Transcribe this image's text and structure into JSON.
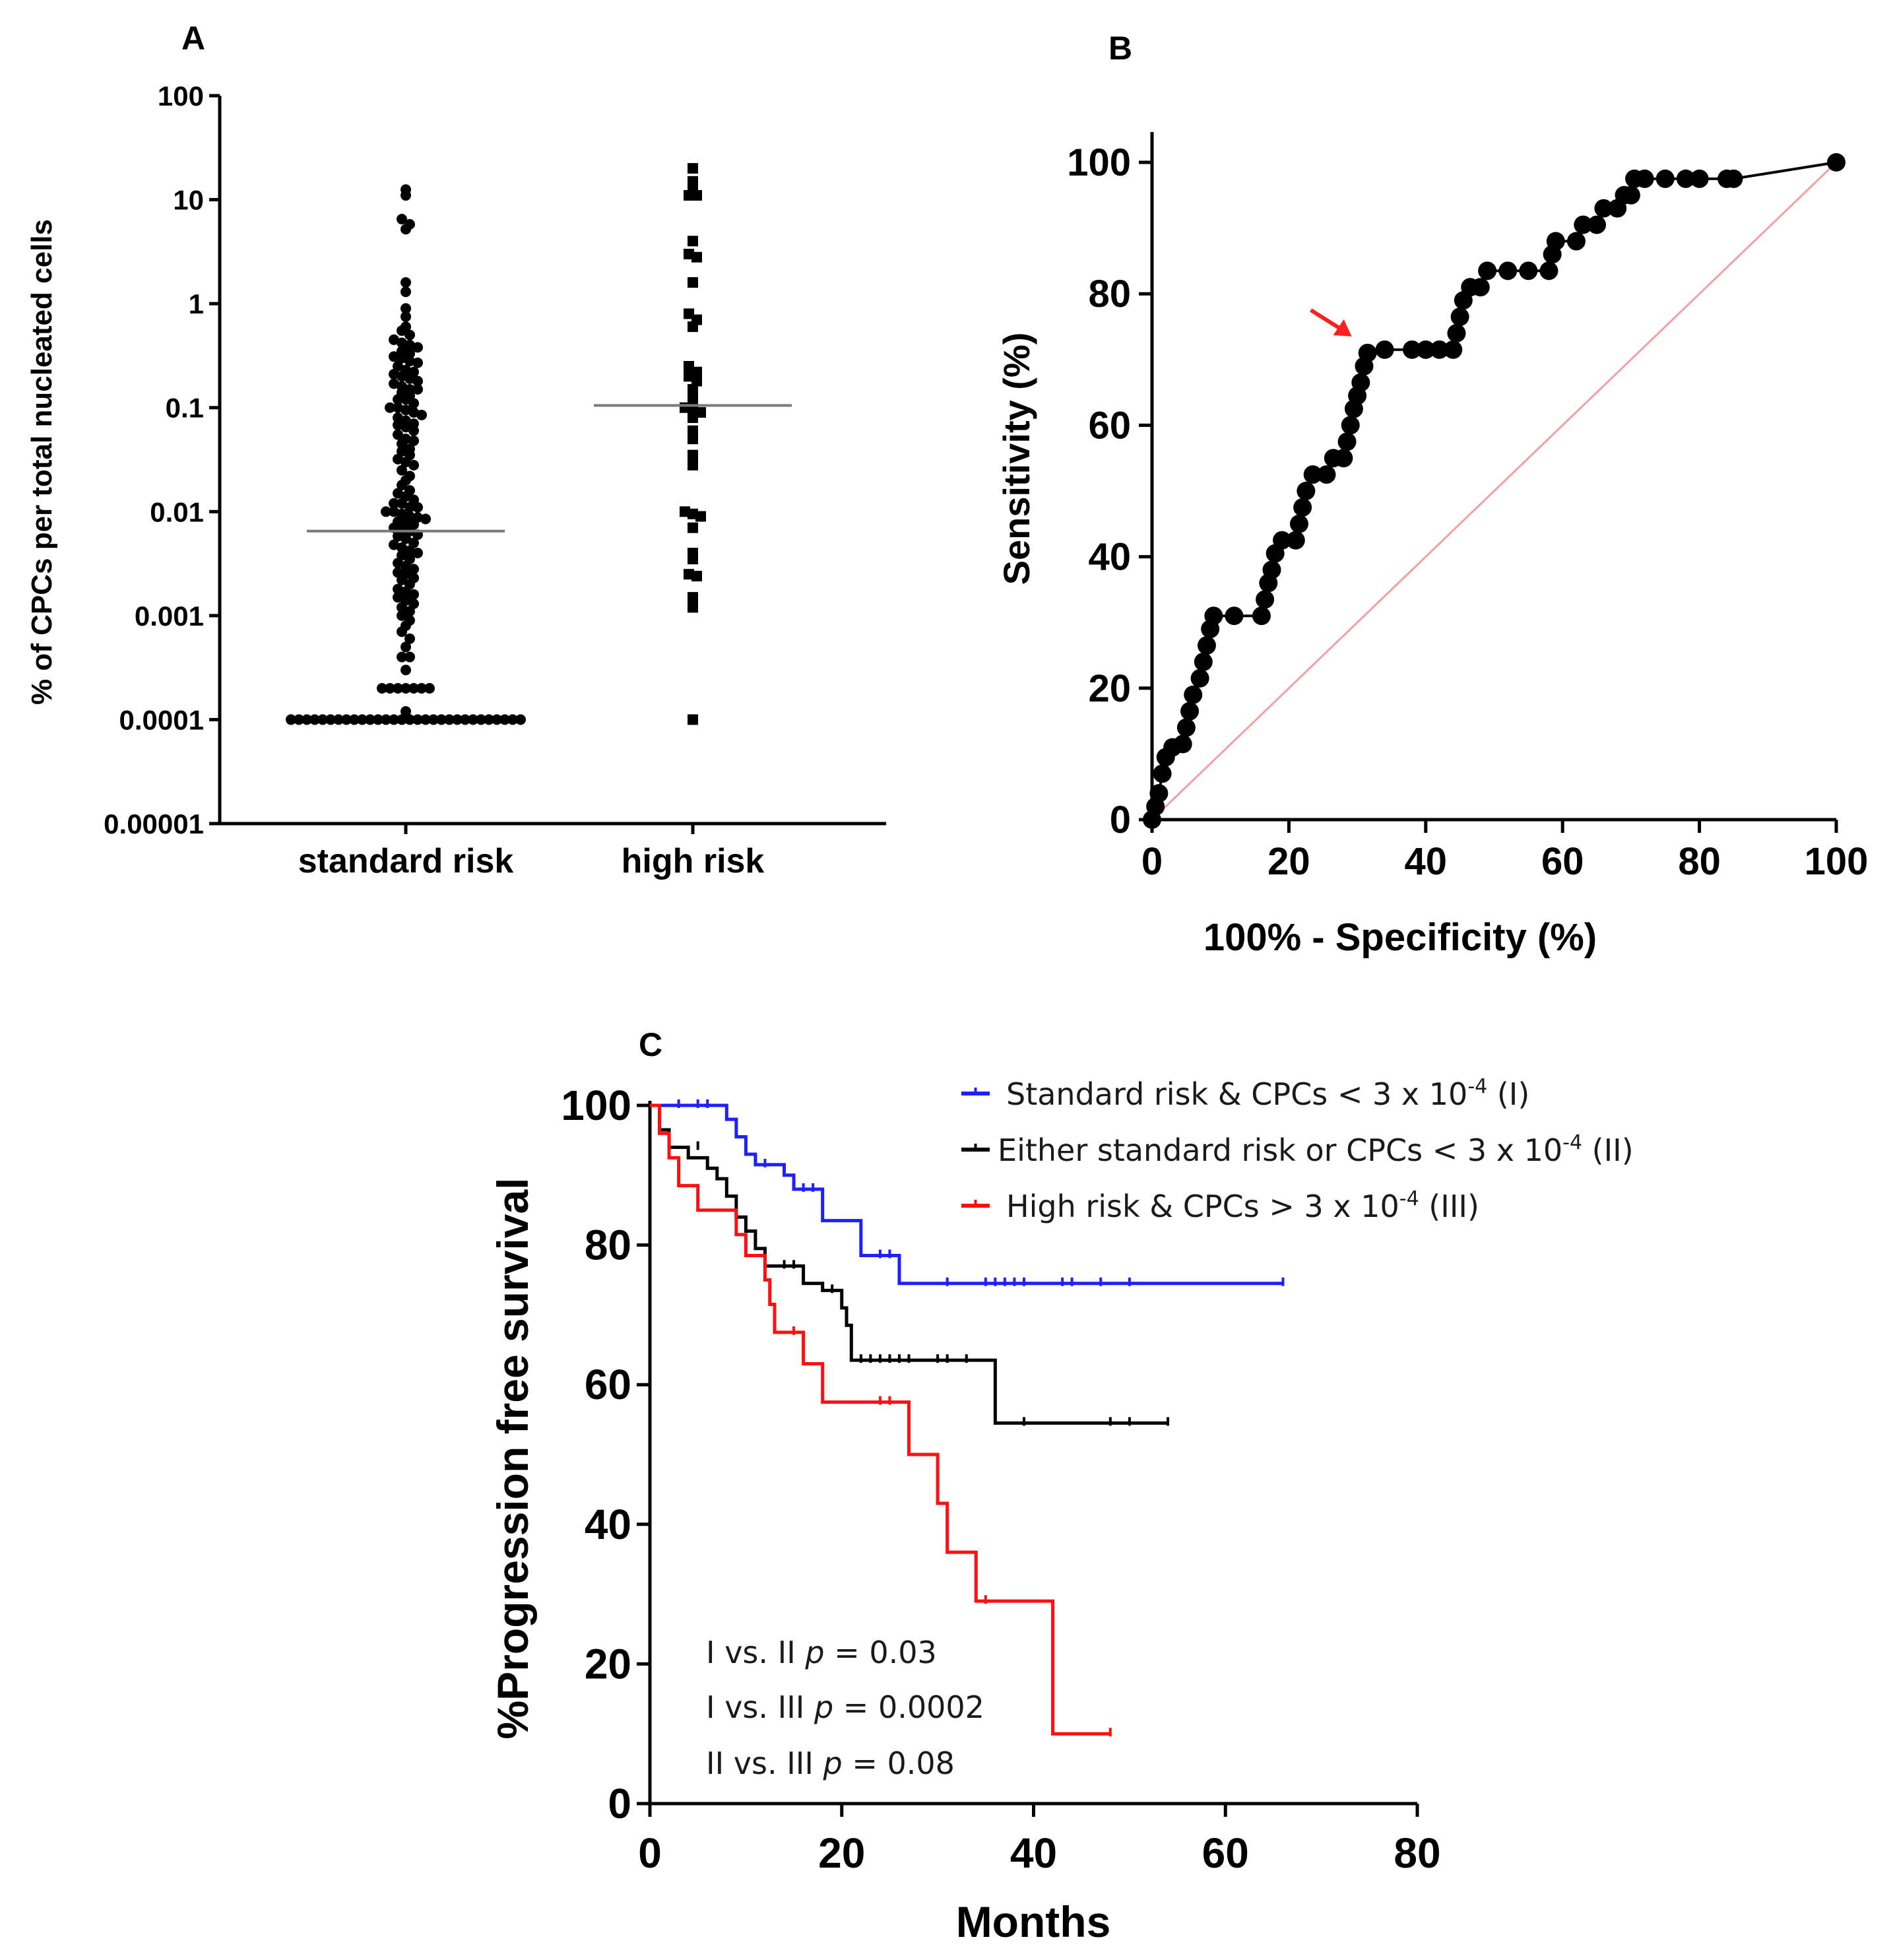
{
  "chart_data": [
    {
      "panel": "A",
      "type": "scatter",
      "ylabel": "% of CPCs per total nucleated cells",
      "yscale": "log",
      "ylim": [
        1e-05,
        100
      ],
      "yticks": [
        "100",
        "10",
        "1",
        "0.1",
        "0.01",
        "0.001",
        "0.0001",
        "0.00001"
      ],
      "categories": [
        "standard risk",
        "high risk"
      ],
      "series": [
        {
          "category": "standard risk",
          "marker": "circle",
          "median": 0.0065,
          "values": [
            12.5,
            11,
            6.5,
            5.8,
            5.2,
            1.6,
            1.3,
            0.9,
            0.75,
            0.6,
            0.55,
            0.5,
            0.45,
            0.42,
            0.4,
            0.38,
            0.35,
            0.33,
            0.31,
            0.3,
            0.28,
            0.27,
            0.25,
            0.23,
            0.22,
            0.21,
            0.2,
            0.19,
            0.18,
            0.17,
            0.16,
            0.15,
            0.15,
            0.14,
            0.13,
            0.12,
            0.12,
            0.11,
            0.1,
            0.1,
            0.095,
            0.09,
            0.085,
            0.08,
            0.075,
            0.07,
            0.068,
            0.065,
            0.06,
            0.055,
            0.05,
            0.048,
            0.045,
            0.04,
            0.038,
            0.035,
            0.032,
            0.03,
            0.028,
            0.025,
            0.022,
            0.02,
            0.018,
            0.016,
            0.015,
            0.014,
            0.013,
            0.012,
            0.012,
            0.011,
            0.011,
            0.01,
            0.01,
            0.0095,
            0.009,
            0.0088,
            0.0085,
            0.008,
            0.0078,
            0.0075,
            0.007,
            0.0068,
            0.0065,
            0.006,
            0.0058,
            0.0055,
            0.005,
            0.0048,
            0.0045,
            0.0042,
            0.004,
            0.0038,
            0.0035,
            0.0032,
            0.003,
            0.0028,
            0.0026,
            0.0025,
            0.0023,
            0.0022,
            0.002,
            0.0018,
            0.0017,
            0.0016,
            0.0015,
            0.0014,
            0.0013,
            0.0012,
            0.0011,
            0.001,
            0.0009,
            0.0008,
            0.0007,
            0.0006,
            0.0005,
            0.0004,
            0.0004,
            0.0003,
            0.0002,
            0.0002,
            0.0002,
            0.0002,
            0.0002,
            0.0002,
            0.0002,
            0.0001,
            0.0001,
            0.0001,
            0.0001,
            0.0001,
            0.0001,
            0.0001,
            0.0001,
            0.0001,
            0.0001,
            0.0001,
            0.0001,
            0.0001,
            0.0001,
            0.0001,
            0.0001,
            0.0001,
            0.0001,
            0.0001,
            0.0001,
            0.0001,
            0.0001,
            0.0001,
            0.0001,
            0.0001,
            0.0001,
            0.0001,
            0.0001,
            0.0001,
            0.0001,
            0.00012
          ]
        },
        {
          "category": "high risk",
          "marker": "square",
          "median": 0.105,
          "values": [
            20,
            15,
            12,
            11,
            11,
            4,
            3,
            2.8,
            1.6,
            0.8,
            0.7,
            0.6,
            0.25,
            0.22,
            0.2,
            0.18,
            0.15,
            0.12,
            0.1,
            0.1,
            0.09,
            0.08,
            0.06,
            0.05,
            0.035,
            0.028,
            0.01,
            0.0095,
            0.009,
            0.007,
            0.004,
            0.0035,
            0.0025,
            0.0024,
            0.0015,
            0.0012,
            0.0001
          ]
        }
      ]
    },
    {
      "panel": "B",
      "type": "line",
      "xlabel": "100% - Specificity (%)",
      "ylabel": "Sensitivity (%)",
      "xlim": [
        0,
        100
      ],
      "ylim": [
        0,
        100
      ],
      "xticks": [
        "0",
        "20",
        "40",
        "60",
        "80",
        "100"
      ],
      "yticks": [
        "0",
        "20",
        "40",
        "60",
        "80",
        "100"
      ],
      "roc_points": [
        [
          0,
          0
        ],
        [
          0.5,
          2
        ],
        [
          1,
          4
        ],
        [
          1.5,
          7
        ],
        [
          2,
          9.5
        ],
        [
          3,
          11
        ],
        [
          4.5,
          11.5
        ],
        [
          5,
          14
        ],
        [
          5.5,
          16.5
        ],
        [
          6,
          19
        ],
        [
          7,
          21.5
        ],
        [
          7.5,
          24
        ],
        [
          8,
          26.5
        ],
        [
          8.5,
          29
        ],
        [
          9,
          31
        ],
        [
          12,
          31
        ],
        [
          16,
          31
        ],
        [
          16.5,
          33.5
        ],
        [
          17,
          36
        ],
        [
          17.5,
          38
        ],
        [
          18,
          40.5
        ],
        [
          19,
          42.5
        ],
        [
          21,
          42.5
        ],
        [
          21.5,
          45
        ],
        [
          22,
          47.5
        ],
        [
          22.5,
          50
        ],
        [
          23.5,
          52.5
        ],
        [
          25.5,
          52.5
        ],
        [
          26.5,
          55
        ],
        [
          28,
          55
        ],
        [
          28.5,
          57.5
        ],
        [
          29,
          60
        ],
        [
          29.5,
          62.5
        ],
        [
          30,
          64.5
        ],
        [
          30.5,
          66.5
        ],
        [
          31,
          69
        ],
        [
          31.5,
          71
        ],
        [
          34,
          71.5
        ],
        [
          38,
          71.5
        ],
        [
          40,
          71.5
        ],
        [
          42,
          71.5
        ],
        [
          44,
          71.5
        ],
        [
          44.5,
          74
        ],
        [
          45,
          76.5
        ],
        [
          45.5,
          79
        ],
        [
          46.5,
          81
        ],
        [
          48,
          81
        ],
        [
          49,
          83.5
        ],
        [
          52,
          83.5
        ],
        [
          55,
          83.5
        ],
        [
          58,
          83.5
        ],
        [
          58.5,
          86
        ],
        [
          59,
          88
        ],
        [
          62,
          88
        ],
        [
          63,
          90.5
        ],
        [
          65,
          90.5
        ],
        [
          66,
          93
        ],
        [
          68,
          93
        ],
        [
          69,
          95
        ],
        [
          70,
          95
        ],
        [
          70.5,
          97.5
        ],
        [
          72,
          97.5
        ],
        [
          75,
          97.5
        ],
        [
          78,
          97.5
        ],
        [
          80,
          97.5
        ],
        [
          84,
          97.5
        ],
        [
          85,
          97.5
        ],
        [
          100,
          100
        ]
      ],
      "reference_line": [
        [
          0,
          0
        ],
        [
          100,
          100
        ]
      ],
      "arrow_at": [
        31.5,
        71.5
      ],
      "colors": {
        "roc": "#000000",
        "reference": "#f4a0a0",
        "arrow": "#ff2020"
      }
    },
    {
      "panel": "C",
      "type": "line",
      "subtype": "kaplan-meier",
      "xlabel": "Months",
      "ylabel": "%Progression free survival",
      "xlim": [
        0,
        80
      ],
      "ylim": [
        0,
        100
      ],
      "xticks": [
        "0",
        "20",
        "40",
        "60",
        "80"
      ],
      "yticks": [
        "0",
        "20",
        "40",
        "60",
        "80",
        "100"
      ],
      "series": [
        {
          "name": "Standard risk & CPCs < 3 x 10",
          "name_sup": "-4",
          "name_suffix": " (I)",
          "color": "#1f1fff",
          "steps": [
            [
              0,
              100
            ],
            [
              8,
              100
            ],
            [
              8,
              98
            ],
            [
              9,
              98
            ],
            [
              9,
              95.5
            ],
            [
              10,
              95.5
            ],
            [
              10,
              93
            ],
            [
              11,
              93
            ],
            [
              11,
              91.5
            ],
            [
              14,
              91.5
            ],
            [
              14,
              90
            ],
            [
              15,
              90
            ],
            [
              15,
              88
            ],
            [
              18,
              88
            ],
            [
              18,
              83.5
            ],
            [
              22,
              83.5
            ],
            [
              22,
              78.5
            ],
            [
              26,
              78.5
            ],
            [
              26,
              74.5
            ],
            [
              66,
              74.5
            ]
          ],
          "censor": [
            [
              3,
              100
            ],
            [
              5,
              100
            ],
            [
              6,
              100
            ],
            [
              12,
              91.5
            ],
            [
              16,
              88
            ],
            [
              17,
              88
            ],
            [
              24,
              78.5
            ],
            [
              25,
              78.5
            ],
            [
              31,
              74.5
            ],
            [
              35,
              74.5
            ],
            [
              36,
              74.5
            ],
            [
              37,
              74.5
            ],
            [
              38,
              74.5
            ],
            [
              39,
              74.5
            ],
            [
              43,
              74.5
            ],
            [
              44,
              74.5
            ],
            [
              47,
              74.5
            ],
            [
              50,
              74.5
            ],
            [
              66,
              74.5
            ]
          ]
        },
        {
          "name": "Either standard risk or CPCs < 3 x 10",
          "name_sup": "-4",
          "name_suffix": " (II)",
          "color": "#000000",
          "steps": [
            [
              0,
              100
            ],
            [
              1,
              100
            ],
            [
              1,
              96.5
            ],
            [
              2,
              96.5
            ],
            [
              2,
              94
            ],
            [
              4,
              94
            ],
            [
              4,
              92.5
            ],
            [
              6,
              92.5
            ],
            [
              6,
              91
            ],
            [
              7,
              91
            ],
            [
              7,
              89.5
            ],
            [
              8,
              89.5
            ],
            [
              8,
              87
            ],
            [
              9,
              87
            ],
            [
              9,
              84
            ],
            [
              10,
              84
            ],
            [
              10,
              82
            ],
            [
              11,
              82
            ],
            [
              11,
              79.5
            ],
            [
              12,
              79.5
            ],
            [
              12,
              77
            ],
            [
              16,
              77
            ],
            [
              16,
              74.5
            ],
            [
              18,
              74.5
            ],
            [
              18,
              73.5
            ],
            [
              20,
              73.5
            ],
            [
              20,
              71
            ],
            [
              20.5,
              71
            ],
            [
              20.5,
              68.5
            ],
            [
              21,
              68.5
            ],
            [
              21,
              63.5
            ],
            [
              36,
              63.5
            ],
            [
              36,
              54.5
            ],
            [
              54,
              54.5
            ]
          ],
          "censor": [
            [
              5,
              94
            ],
            [
              14,
              77
            ],
            [
              15,
              77
            ],
            [
              19,
              73.5
            ],
            [
              22,
              63.5
            ],
            [
              23,
              63.5
            ],
            [
              24,
              63.5
            ],
            [
              25,
              63.5
            ],
            [
              26,
              63.5
            ],
            [
              27,
              63.5
            ],
            [
              30,
              63.5
            ],
            [
              31,
              63.5
            ],
            [
              33,
              63.5
            ],
            [
              39,
              54.5
            ],
            [
              48,
              54.5
            ],
            [
              50,
              54.5
            ],
            [
              54,
              54.5
            ]
          ]
        },
        {
          "name": "High risk & CPCs > 3 x 10",
          "name_sup": "-4",
          "name_suffix": " (III)",
          "color": "#ff1010",
          "steps": [
            [
              0,
              100
            ],
            [
              1,
              100
            ],
            [
              1,
              96
            ],
            [
              2,
              96
            ],
            [
              2,
              92.5
            ],
            [
              3,
              92.5
            ],
            [
              3,
              88.5
            ],
            [
              5,
              88.5
            ],
            [
              5,
              85
            ],
            [
              9,
              85
            ],
            [
              9,
              81.5
            ],
            [
              10,
              81.5
            ],
            [
              10,
              78.5
            ],
            [
              12,
              78.5
            ],
            [
              12,
              75
            ],
            [
              12.5,
              75
            ],
            [
              12.5,
              71.5
            ],
            [
              13,
              71.5
            ],
            [
              13,
              67.5
            ],
            [
              16,
              67.5
            ],
            [
              16,
              63
            ],
            [
              18,
              63
            ],
            [
              18,
              57.5
            ],
            [
              27,
              57.5
            ],
            [
              27,
              50
            ],
            [
              30,
              50
            ],
            [
              30,
              43
            ],
            [
              31,
              43
            ],
            [
              31,
              36
            ],
            [
              34,
              36
            ],
            [
              34,
              29
            ],
            [
              42,
              29
            ],
            [
              42,
              10
            ],
            [
              48,
              10
            ]
          ],
          "censor": [
            [
              15,
              67.5
            ],
            [
              24,
              57.5
            ],
            [
              25,
              57.5
            ],
            [
              35,
              29
            ],
            [
              48,
              10
            ]
          ]
        }
      ],
      "annotations": [
        {
          "left": "I vs. II ",
          "p": "p",
          "right": " = 0.03"
        },
        {
          "left": "I vs. III ",
          "p": "p",
          "right": " = 0.0002"
        },
        {
          "left": "II vs. III ",
          "p": "p",
          "right": " = 0.08"
        }
      ]
    }
  ]
}
